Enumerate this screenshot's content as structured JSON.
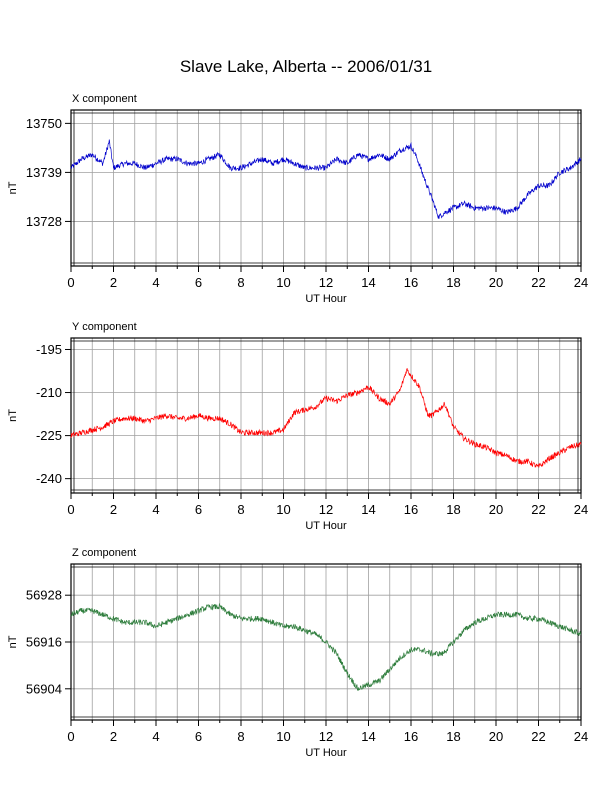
{
  "title": "Slave Lake, Alberta -- 2006/01/31",
  "chart_data": [
    {
      "type": "line",
      "panel_title": "X component",
      "xlabel": "UT Hour",
      "ylabel": "nT",
      "xlim": [
        0,
        24
      ],
      "xticks": [
        0,
        2,
        4,
        6,
        8,
        10,
        12,
        14,
        16,
        18,
        20,
        22,
        24
      ],
      "ylim": [
        13718,
        13753
      ],
      "yticks": [
        13728,
        13739,
        13750
      ],
      "color": "#0000cc",
      "grid": true,
      "series": [
        {
          "x": [
            0,
            0.5,
            1,
            1.5,
            1.8,
            2,
            2.5,
            3,
            3.5,
            4,
            4.5,
            5,
            5.5,
            6,
            6.5,
            7,
            7.5,
            8,
            8.5,
            9,
            9.5,
            10,
            10.5,
            11,
            11.5,
            12,
            12.5,
            13,
            13.5,
            14,
            14.5,
            15,
            15.5,
            16,
            16.3,
            16.6,
            17,
            17.3,
            17.6,
            18,
            18.5,
            19,
            19.5,
            20,
            20.5,
            21,
            21.5,
            22,
            22.5,
            23,
            23.5,
            24
          ],
          "values": [
            13740,
            13742,
            13743,
            13741,
            13746,
            13740,
            13741,
            13741,
            13740,
            13741,
            13742,
            13742,
            13741,
            13741,
            13742,
            13743,
            13740,
            13740,
            13741,
            13742,
            13741,
            13742,
            13741,
            13740,
            13740,
            13740,
            13742,
            13741,
            13743,
            13742,
            13743,
            13742,
            13744,
            13745,
            13742,
            13738,
            13733,
            13729,
            13730,
            13731,
            13732,
            13731,
            13731,
            13731,
            13730,
            13731,
            13734,
            13736,
            13736,
            13739,
            13740,
            13742
          ]
        }
      ]
    },
    {
      "type": "line",
      "panel_title": "Y component",
      "xlabel": "UT Hour",
      "ylabel": "nT",
      "xlim": [
        0,
        24
      ],
      "xticks": [
        0,
        2,
        4,
        6,
        8,
        10,
        12,
        14,
        16,
        18,
        20,
        22,
        24
      ],
      "ylim": [
        -245,
        -191
      ],
      "yticks": [
        -240,
        -225,
        -210,
        -195
      ],
      "color": "#ff0000",
      "grid": true,
      "series": [
        {
          "x": [
            0,
            0.5,
            1,
            1.5,
            2,
            2.5,
            3,
            3.5,
            4,
            4.5,
            5,
            5.5,
            6,
            6.5,
            7,
            7.5,
            8,
            8.5,
            9,
            9.5,
            10,
            10.5,
            11,
            11.5,
            12,
            12.5,
            13,
            13.5,
            14,
            14.5,
            15,
            15.5,
            15.8,
            16,
            16.4,
            16.8,
            17,
            17.3,
            17.6,
            18,
            18.5,
            19,
            19.5,
            20,
            20.5,
            21,
            21.5,
            22,
            22.5,
            23,
            23.5,
            24
          ],
          "values": [
            -225,
            -224,
            -223,
            -222,
            -220,
            -219,
            -219,
            -220,
            -219,
            -218,
            -219,
            -219,
            -218,
            -219,
            -219,
            -221,
            -224,
            -224,
            -224,
            -224,
            -223,
            -217,
            -216,
            -215,
            -212,
            -213,
            -211,
            -210,
            -208,
            -212,
            -214,
            -209,
            -202,
            -204,
            -208,
            -218,
            -218,
            -216,
            -214,
            -222,
            -226,
            -228,
            -229,
            -231,
            -232,
            -234,
            -234,
            -236,
            -233,
            -231,
            -229,
            -228
          ]
        }
      ]
    },
    {
      "type": "line",
      "panel_title": "Z component",
      "xlabel": "UT Hour",
      "ylabel": "nT",
      "xlim": [
        0,
        24
      ],
      "xticks": [
        0,
        2,
        4,
        6,
        8,
        10,
        12,
        14,
        16,
        18,
        20,
        22,
        24
      ],
      "ylim": [
        56896,
        56936
      ],
      "yticks": [
        56904,
        56916,
        56928
      ],
      "color": "#2e7d3c",
      "grid": true,
      "series": [
        {
          "x": [
            0,
            0.5,
            1,
            1.5,
            2,
            2.5,
            3,
            3.5,
            4,
            4.5,
            5,
            5.5,
            6,
            6.5,
            7,
            7.5,
            8,
            8.5,
            9,
            9.5,
            10,
            10.5,
            11,
            11.5,
            12,
            12.5,
            13,
            13.5,
            14,
            14.5,
            15,
            15.5,
            16,
            16.5,
            17,
            17.5,
            18,
            18.5,
            19,
            19.5,
            20,
            20.5,
            21,
            21.5,
            22,
            22.5,
            23,
            23.5,
            24
          ],
          "values": [
            56923,
            56924,
            56924,
            56923,
            56922,
            56921,
            56921,
            56921,
            56920,
            56921,
            56922,
            56923,
            56924,
            56925,
            56925,
            56923,
            56922,
            56922,
            56922,
            56921,
            56920,
            56920,
            56919,
            56918,
            56916,
            56913,
            56908,
            56904,
            56905,
            56906,
            56909,
            56912,
            56914,
            56914,
            56913,
            56913,
            56916,
            56919,
            56921,
            56922,
            56923,
            56923,
            56923,
            56922,
            56922,
            56921,
            56920,
            56919,
            56918
          ]
        }
      ]
    }
  ]
}
